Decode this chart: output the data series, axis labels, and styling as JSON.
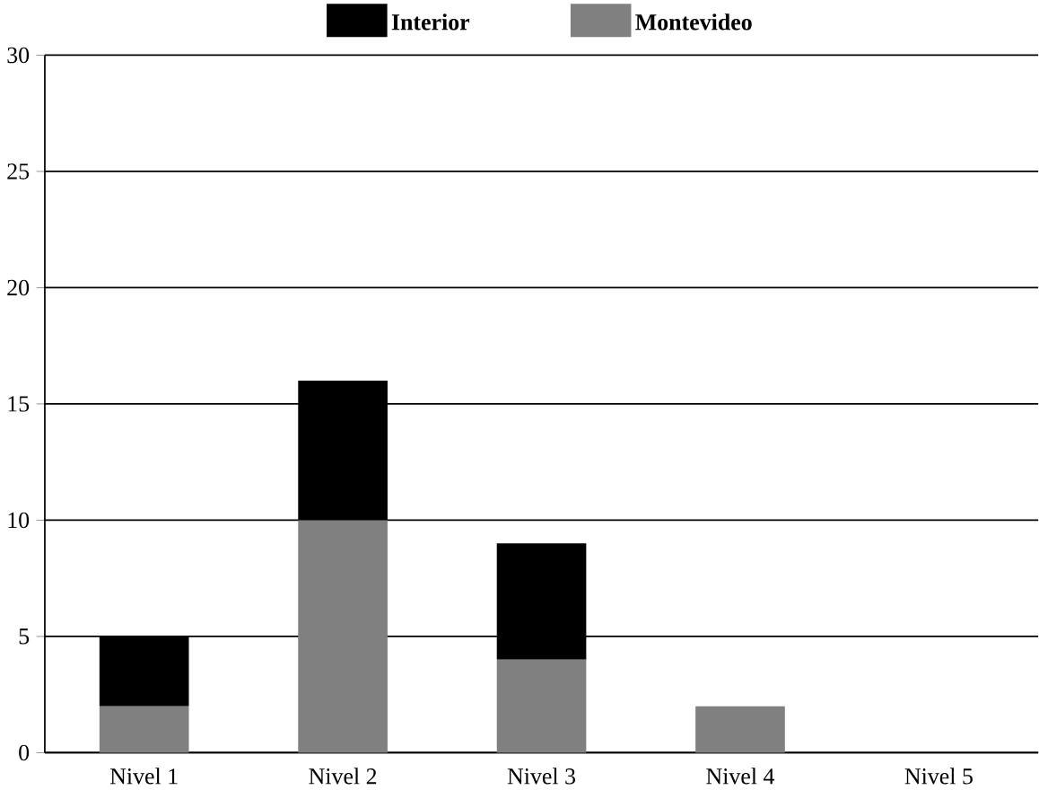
{
  "chart_data": {
    "type": "bar",
    "stacked": true,
    "categories": [
      "Nivel 1",
      "Nivel 2",
      "Nivel 3",
      "Nivel 4",
      "Nivel 5"
    ],
    "series": [
      {
        "name": "Montevideo",
        "color": "#808080",
        "values": [
          2,
          10,
          4,
          2,
          0
        ]
      },
      {
        "name": "Interior",
        "color": "#000000",
        "values": [
          3,
          6,
          5,
          0,
          0
        ]
      }
    ],
    "ylim": [
      0,
      30
    ],
    "yticks": [
      0,
      5,
      10,
      15,
      20,
      25,
      30
    ],
    "grid": "y",
    "legend": "top"
  }
}
